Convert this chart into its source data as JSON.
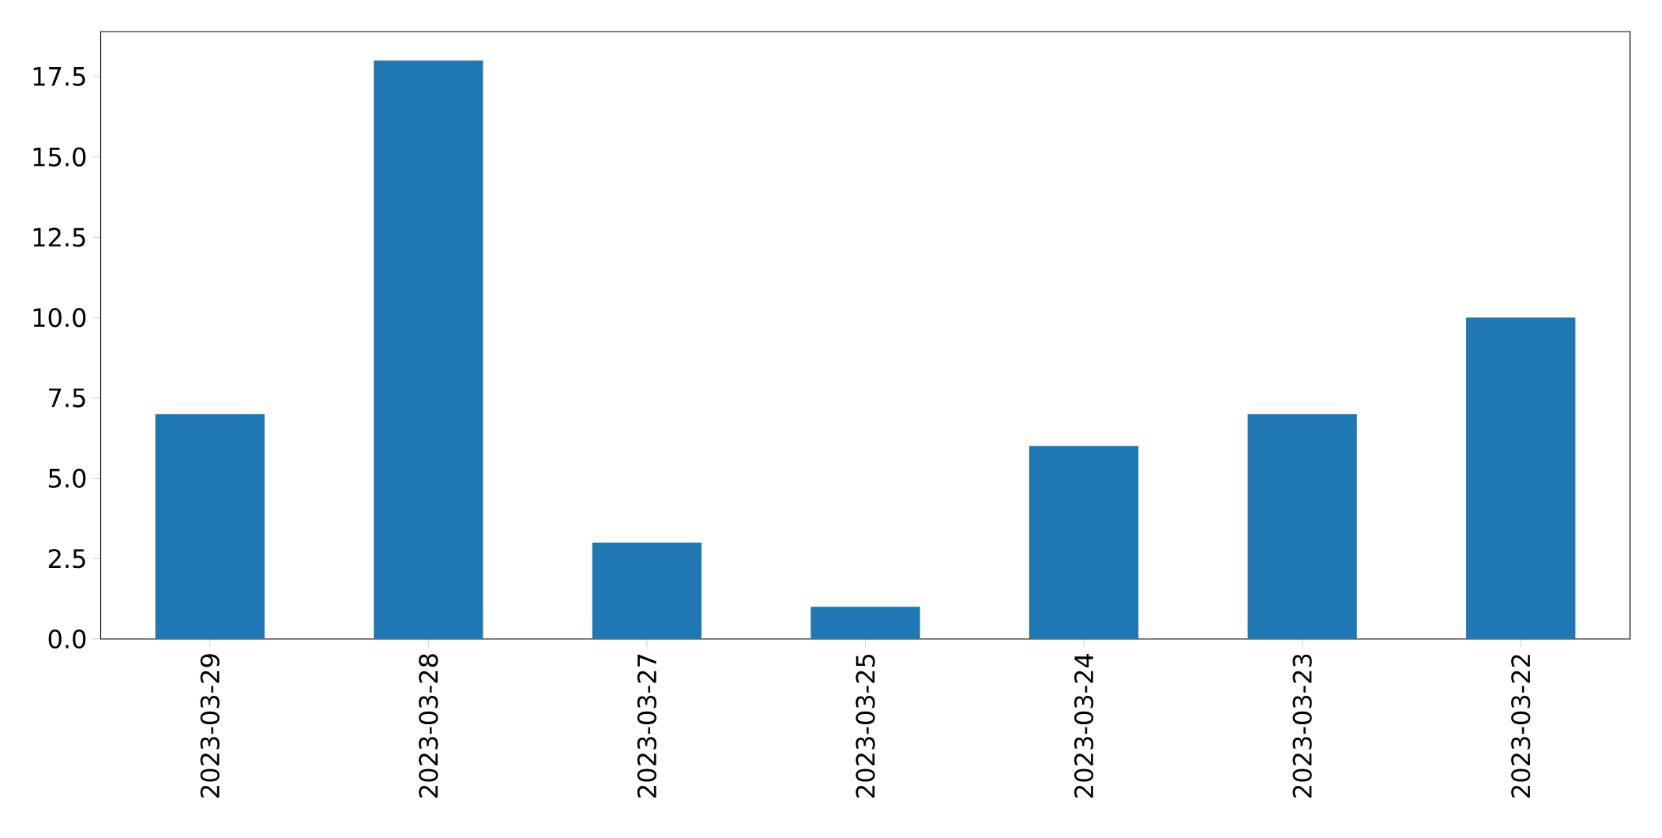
{
  "chart_data": {
    "type": "bar",
    "categories": [
      "2023-03-29",
      "2023-03-28",
      "2023-03-27",
      "2023-03-25",
      "2023-03-24",
      "2023-03-23",
      "2023-03-22"
    ],
    "values": [
      7,
      18,
      3,
      1,
      6,
      7,
      10
    ],
    "color": "#1f77b4",
    "ylim": [
      0,
      18.9
    ],
    "yticks": [
      {
        "value": 0,
        "label": "0.0"
      },
      {
        "value": 2.5,
        "label": "2.5"
      },
      {
        "value": 5,
        "label": "5.0"
      },
      {
        "value": 7.5,
        "label": "7.5"
      },
      {
        "value": 10,
        "label": "10.0"
      },
      {
        "value": 12.5,
        "label": "12.5"
      },
      {
        "value": 15,
        "label": "15.0"
      },
      {
        "value": 17.5,
        "label": "17.5"
      }
    ]
  }
}
